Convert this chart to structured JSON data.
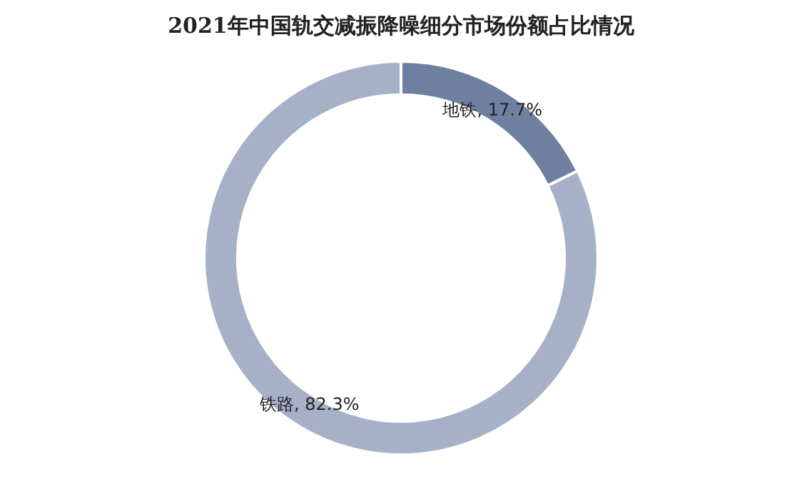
{
  "chart_data": {
    "type": "donut",
    "title": "2021年中国轨交减振降噪细分市场份额占比情况",
    "categories": [
      "地铁",
      "铁路"
    ],
    "values": [
      17.7,
      82.3
    ],
    "colors": [
      "#6f7fa0",
      "#a6b1c8"
    ],
    "value_labels": [
      "17.7%",
      "82.3%"
    ],
    "legend": false
  }
}
